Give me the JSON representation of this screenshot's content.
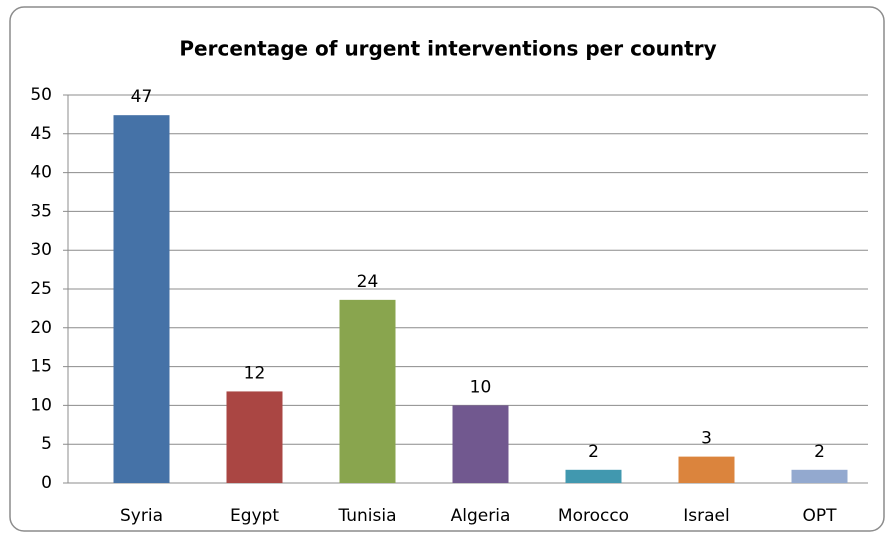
{
  "chart_data": {
    "type": "bar",
    "title": "Percentage of urgent interventions per country",
    "categories": [
      "Syria",
      "Egypt",
      "Tunisia",
      "Algeria",
      "Morocco",
      "Israel",
      "OPT"
    ],
    "values": [
      47.4,
      11.8,
      23.6,
      10,
      1.7,
      3.4,
      1.7
    ],
    "value_labels": [
      "47",
      "12",
      "24",
      "10",
      "2",
      "3",
      "2"
    ],
    "colors": [
      "#4572a7",
      "#aa4643",
      "#89a54e",
      "#71588f",
      "#4198af",
      "#db843d",
      "#93a9cf"
    ],
    "ylim": [
      0,
      50
    ],
    "yticks": [
      0,
      5,
      10,
      15,
      20,
      25,
      30,
      35,
      40,
      45,
      50
    ],
    "grid": true
  }
}
